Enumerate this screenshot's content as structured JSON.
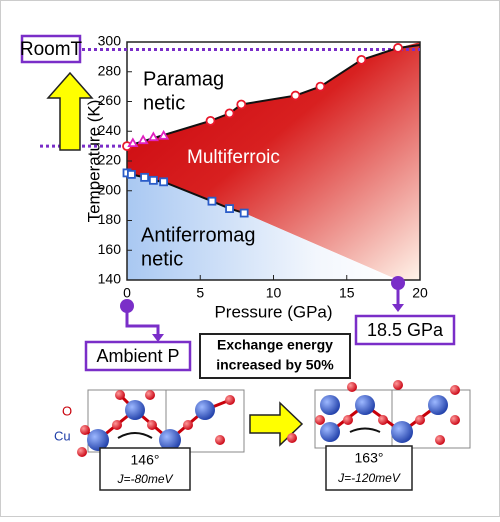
{
  "chart_data": {
    "type": "scatter",
    "x_label": "Pressure (GPa)",
    "y_label": "Temperature (K)",
    "xlim": [
      0,
      20
    ],
    "ylim": [
      140,
      300
    ],
    "xticks": [
      0,
      5,
      10,
      15,
      20
    ],
    "yticks": [
      140,
      160,
      180,
      200,
      220,
      240,
      260,
      280,
      300
    ],
    "series": [
      {
        "color": "#e8192c",
        "marker": "circle",
        "x": [
          0,
          5.7,
          7,
          7.8,
          11.5,
          13.2,
          16,
          18.5
        ],
        "values": [
          230,
          247,
          252,
          258,
          264,
          270,
          288,
          296
        ]
      },
      {
        "color": "#e020c0",
        "marker": "triangle",
        "x": [
          0.4,
          1.1,
          1.8,
          2.5
        ],
        "values": [
          232,
          234,
          236,
          237
        ]
      },
      {
        "color": "#2a5cc8",
        "marker": "square",
        "x": [
          0,
          0.3,
          1.2,
          1.8,
          2.5,
          5.8,
          7,
          8
        ],
        "values": [
          212,
          211,
          209,
          207,
          206,
          193,
          188,
          185
        ]
      }
    ],
    "hlines": [
      295,
      230
    ],
    "pins": [
      0,
      18.5
    ],
    "region_labels": {
      "paramagnetic": [
        "Paramag",
        "netic"
      ],
      "multiferroic": "Multiferroic",
      "antiferromagnetic": [
        "Antiferromag",
        "netic"
      ]
    },
    "annotations": {
      "room_t": "RoomT",
      "ambient": "Ambient P",
      "high_p": "18.5 GPa",
      "exchange": [
        "Exchange energy",
        "increased by 50%"
      ],
      "oxygen": "O",
      "copper": "Cu",
      "angle_left": "146°",
      "j_left": "J=-80meV",
      "angle_right": "163°",
      "j_right": "J=-120meV"
    }
  }
}
